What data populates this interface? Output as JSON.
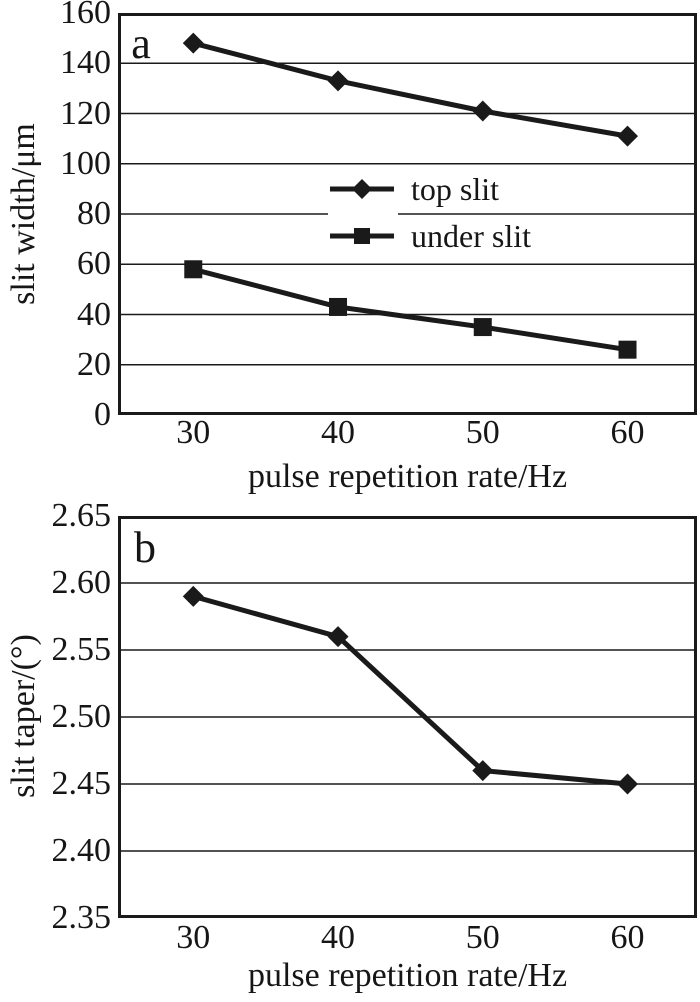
{
  "figure": {
    "background": "#ffffff",
    "ink": "#1a1a1a"
  },
  "chart_data": [
    {
      "id": "a",
      "type": "line",
      "panel_label": "a",
      "xlabel": "pulse repetition rate/Hz",
      "ylabel": "slit width/μm",
      "x": [
        30,
        40,
        50,
        60
      ],
      "x_tick_labels": [
        "30",
        "40",
        "50",
        "60"
      ],
      "xlim": [
        24.8,
        64.8
      ],
      "y_ticks": [
        0,
        20,
        40,
        60,
        80,
        100,
        120,
        140,
        160
      ],
      "y_tick_labels": [
        "0",
        "20",
        "40",
        "60",
        "80",
        "100",
        "120",
        "140",
        "160"
      ],
      "ylim": [
        0,
        160
      ],
      "grid": "horizontal",
      "legend_position": "inside-upper-center",
      "series": [
        {
          "name": "top slit",
          "marker": "diamond",
          "values": [
            148,
            133,
            121,
            111
          ]
        },
        {
          "name": "under slit",
          "marker": "square",
          "values": [
            58,
            43,
            35,
            26
          ]
        }
      ]
    },
    {
      "id": "b",
      "type": "line",
      "panel_label": "b",
      "xlabel": "pulse repetition rate/Hz",
      "ylabel": "slit taper/(°)",
      "x": [
        30,
        40,
        50,
        60
      ],
      "x_tick_labels": [
        "30",
        "40",
        "50",
        "60"
      ],
      "xlim": [
        24.8,
        64.8
      ],
      "y_ticks": [
        2.35,
        2.4,
        2.45,
        2.5,
        2.55,
        2.6,
        2.65
      ],
      "y_tick_labels": [
        "2.35",
        "2.40",
        "2.45",
        "2.50",
        "2.55",
        "2.60",
        "2.65"
      ],
      "ylim": [
        2.35,
        2.65
      ],
      "grid": "horizontal",
      "legend_position": "none",
      "series": [
        {
          "name": "slit taper",
          "marker": "diamond",
          "values": [
            2.59,
            2.56,
            2.46,
            2.45
          ]
        }
      ]
    }
  ]
}
